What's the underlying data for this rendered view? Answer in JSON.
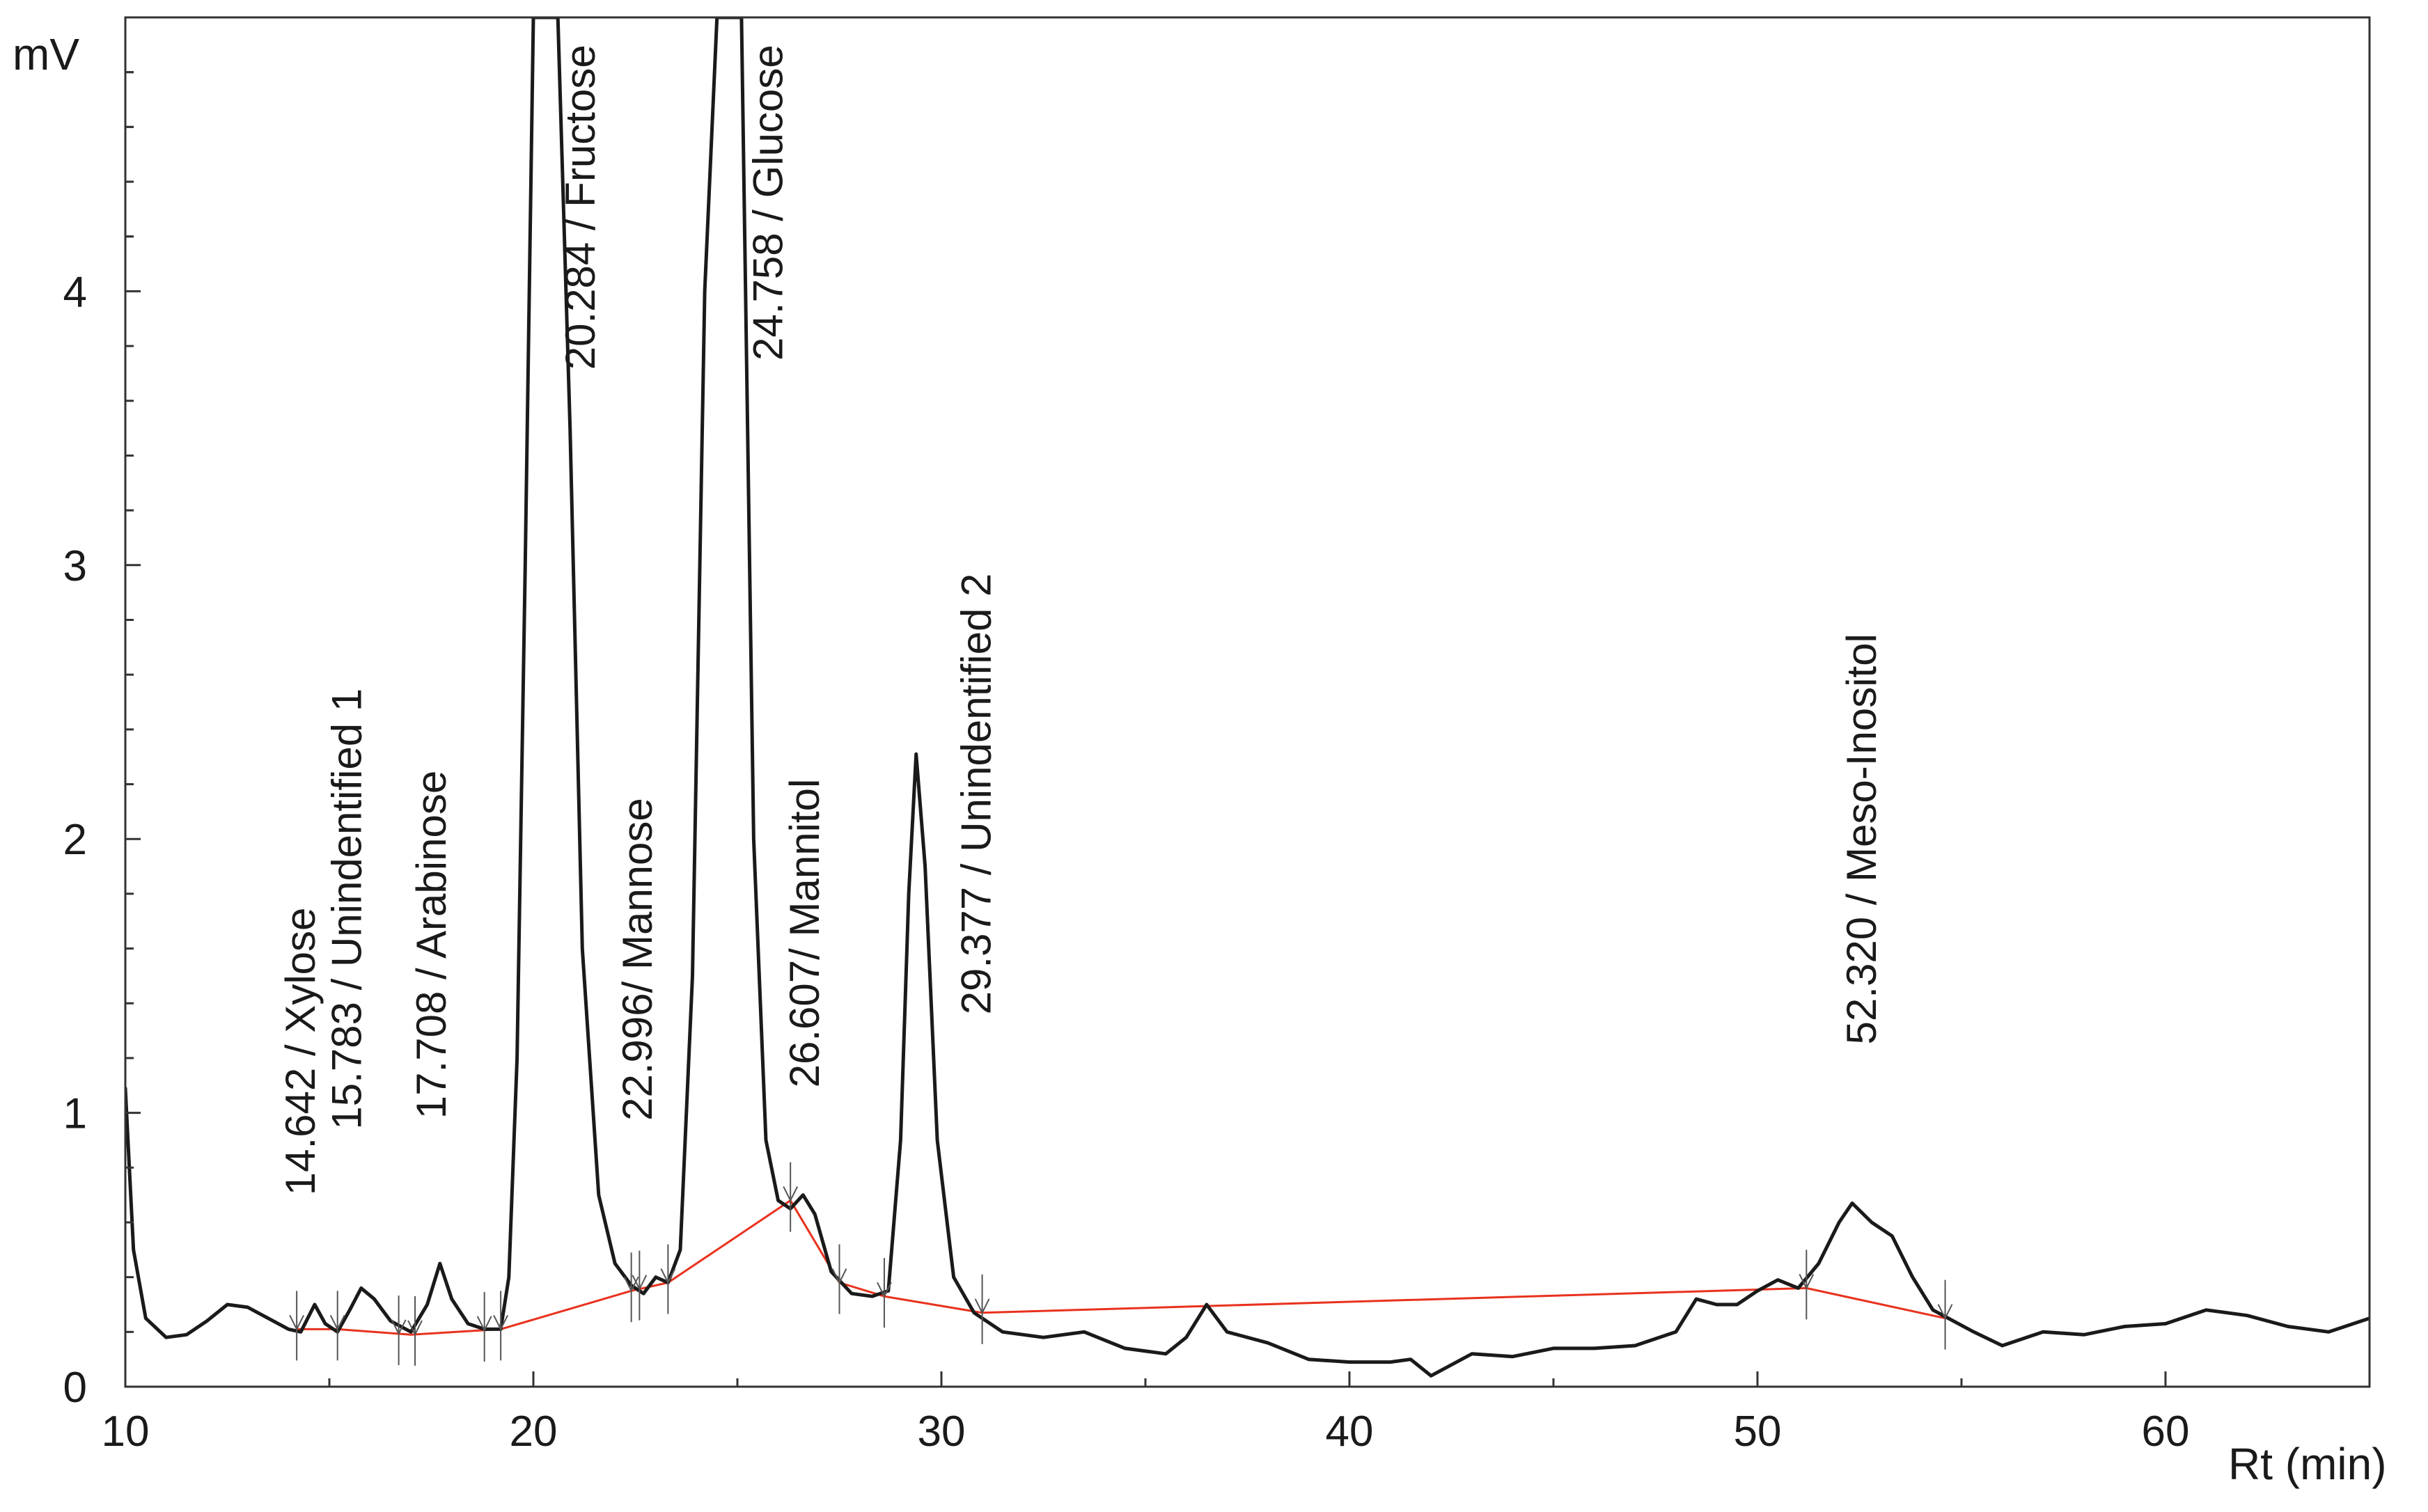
{
  "chart_data": {
    "type": "line",
    "title": "",
    "xlabel": "Rt (min)",
    "ylabel": "mV",
    "xlim": [
      10,
      65
    ],
    "ylim": [
      0,
      5
    ],
    "xticks": [
      10,
      20,
      30,
      40,
      50,
      60
    ],
    "xtick_labels": [
      "10",
      "20",
      "30",
      "40",
      "50",
      "60"
    ],
    "yticks": [
      0,
      1,
      2,
      3,
      4
    ],
    "ytick_labels": [
      "0",
      "1",
      "2",
      "3",
      "4"
    ],
    "grid": false,
    "colors": {
      "trace": "#1a1a1a",
      "baseline": "#e8321e",
      "marker": "#555555"
    },
    "series": [
      {
        "name": "chromatogram",
        "x": [
          10,
          10.2,
          10.5,
          11,
          11.5,
          12,
          12.5,
          13,
          13.5,
          14,
          14.3,
          14.64,
          14.9,
          15.2,
          15.5,
          15.78,
          16.1,
          16.5,
          17,
          17.4,
          17.71,
          18,
          18.4,
          18.8,
          19.2,
          19.4,
          19.6,
          19.8,
          20.0,
          20.28,
          20.6,
          20.9,
          21.2,
          21.6,
          22.0,
          22.4,
          22.7,
          23.0,
          23.3,
          23.6,
          23.9,
          24.2,
          24.5,
          24.76,
          25.1,
          25.4,
          25.7,
          26.0,
          26.3,
          26.61,
          26.9,
          27.3,
          27.8,
          28.3,
          28.7,
          29.0,
          29.2,
          29.38,
          29.6,
          29.9,
          30.3,
          30.8,
          31.5,
          32.5,
          33.5,
          34.5,
          35.5,
          36.0,
          36.5,
          37.0,
          38.0,
          39.0,
          40.0,
          41.0,
          41.5,
          42.0,
          43.0,
          44.0,
          45.0,
          46.0,
          47.0,
          48.0,
          48.5,
          49.0,
          49.5,
          50.0,
          50.5,
          51.0,
          51.5,
          52.0,
          52.32,
          52.8,
          53.3,
          53.8,
          54.3,
          54.8,
          55.3,
          56.0,
          57.0,
          58.0,
          59.0,
          60.0,
          61.0,
          62.0,
          63.0,
          64.0,
          65.0
        ],
        "y": [
          1.09,
          0.5,
          0.25,
          0.18,
          0.19,
          0.24,
          0.3,
          0.29,
          0.25,
          0.21,
          0.2,
          0.3,
          0.23,
          0.2,
          0.28,
          0.36,
          0.32,
          0.24,
          0.2,
          0.3,
          0.45,
          0.32,
          0.23,
          0.21,
          0.21,
          0.4,
          1.2,
          3.0,
          5.0,
          5.0,
          5.0,
          3.5,
          1.6,
          0.7,
          0.45,
          0.37,
          0.34,
          0.4,
          0.38,
          0.5,
          1.5,
          4.0,
          5.0,
          5.0,
          5.0,
          2.0,
          0.9,
          0.68,
          0.65,
          0.7,
          0.63,
          0.42,
          0.34,
          0.33,
          0.35,
          0.9,
          1.8,
          2.31,
          1.9,
          0.9,
          0.4,
          0.27,
          0.2,
          0.18,
          0.2,
          0.14,
          0.12,
          0.18,
          0.3,
          0.2,
          0.16,
          0.1,
          0.09,
          0.09,
          0.1,
          0.04,
          0.12,
          0.11,
          0.14,
          0.14,
          0.15,
          0.2,
          0.32,
          0.3,
          0.3,
          0.35,
          0.39,
          0.36,
          0.45,
          0.6,
          0.67,
          0.6,
          0.55,
          0.4,
          0.28,
          0.24,
          0.2,
          0.15,
          0.2,
          0.19,
          0.22,
          0.23,
          0.28,
          0.26,
          0.22,
          0.2,
          0.25
        ]
      },
      {
        "name": "integration baseline",
        "x": [
          14.2,
          15.2,
          17.0,
          19.2,
          22.4,
          23.3,
          26.3,
          27.5,
          28.6,
          31.0,
          51.2,
          54.6
        ],
        "y": [
          0.21,
          0.21,
          0.19,
          0.21,
          0.35,
          0.38,
          0.68,
          0.38,
          0.33,
          0.27,
          0.36,
          0.25
        ]
      }
    ],
    "peak_markers_x": [
      14.2,
      15.2,
      16.7,
      17.1,
      18.8,
      19.2,
      22.4,
      22.6,
      23.3,
      26.3,
      27.5,
      28.6,
      31.0,
      51.2,
      54.6
    ],
    "peaks": [
      {
        "rt": 14.642,
        "label": "14.642 / Xylose",
        "label_x": 14.64,
        "label_y_top": 1.75
      },
      {
        "rt": 15.783,
        "label": "15.783 / Unindentified 1",
        "label_x": 15.78,
        "label_y_top": 2.55
      },
      {
        "rt": 17.708,
        "label": "17.708 / Arabinose",
        "label_x": 17.85,
        "label_y_top": 2.25
      },
      {
        "rt": 20.284,
        "label": "20.284 / Fructose",
        "label_x": 21.5,
        "label_y_top": 4.9
      },
      {
        "rt": 22.996,
        "label": "22.996/ Mannose",
        "label_x": 22.9,
        "label_y_top": 2.15
      },
      {
        "rt": 24.758,
        "label": "24.758 / Glucose",
        "label_x": 26.1,
        "label_y_top": 4.9
      },
      {
        "rt": 26.607,
        "label": "26.607/ Mannitol",
        "label_x": 27.0,
        "label_y_top": 2.22
      },
      {
        "rt": 29.377,
        "label": "29.377 / Unindentified 2",
        "label_x": 31.2,
        "label_y_top": 2.97
      },
      {
        "rt": 52.32,
        "label": "52.320 / Meso-Inositol",
        "label_x": 52.9,
        "label_y_top": 2.75
      }
    ]
  }
}
